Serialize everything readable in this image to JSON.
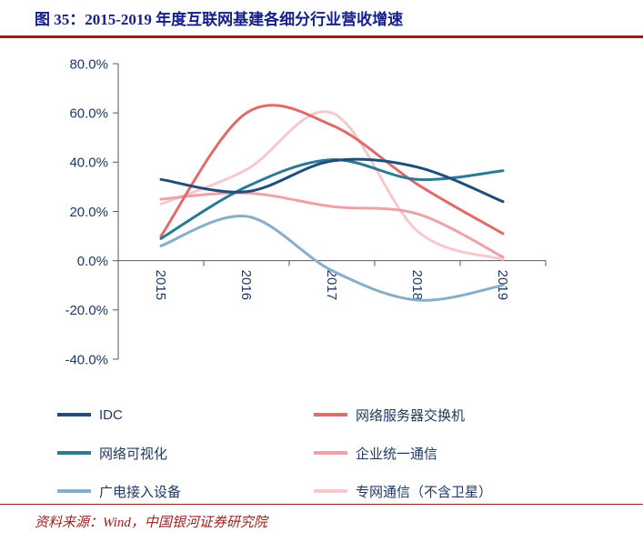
{
  "colors": {
    "title_text": "#141F8C",
    "divider_red": "#9B1B1B",
    "axis_text": "#1F3864",
    "axis_line": "#595959",
    "legend_text": "#1F3864",
    "source_text": "#9B2220"
  },
  "footer": {
    "source": "资料来源：Wind，中国银河证券研究院"
  },
  "chart_data": {
    "type": "line",
    "title": "图 35：2015-2019 年度互联网基建各细分行业营收增速",
    "x": [
      "2015",
      "2016",
      "2017",
      "2018",
      "2019"
    ],
    "y_ticks": [
      "80.0%",
      "60.0%",
      "40.0%",
      "20.0%",
      "0.0%",
      "-20.0%",
      "-40.0%"
    ],
    "ylim": [
      -40,
      80
    ],
    "unit": "%",
    "grid": false,
    "legend_position": "bottom",
    "smooth_lines": true,
    "series": [
      {
        "name": "IDC",
        "color": "#1F4E79",
        "values": [
          33,
          28,
          40.5,
          38,
          24
        ]
      },
      {
        "name": "网络服务器交换机",
        "color": "#DF6B6B",
        "values": [
          10,
          60,
          55,
          31,
          11
        ]
      },
      {
        "name": "网络可视化",
        "color": "#2C7A96",
        "values": [
          9,
          30,
          41,
          33,
          36.5
        ]
      },
      {
        "name": "企业统一通信",
        "color": "#F0A1A8",
        "values": [
          25,
          27.5,
          22,
          19,
          1.5
        ]
      },
      {
        "name": "广电接入设备",
        "color": "#85AECB",
        "values": [
          6,
          18,
          -4,
          -16,
          -10
        ]
      },
      {
        "name": "专网通信（不含卫星）",
        "color": "#F6C9CE",
        "values": [
          23,
          37,
          60,
          12,
          0.5
        ]
      }
    ]
  }
}
